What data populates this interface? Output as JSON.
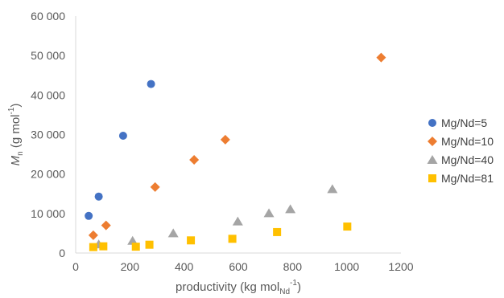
{
  "chart_data": {
    "type": "scatter",
    "xlabel": {
      "main": "productivity (kg mol",
      "sub": "Nd",
      "sup": "-1",
      "end": ")"
    },
    "ylabel": {
      "main": "M",
      "sub": "n",
      "rest": " (g mol",
      "sup": "-1",
      "end": ")"
    },
    "xlim": [
      0,
      1200
    ],
    "ylim": [
      0,
      60000
    ],
    "x_ticks": [
      0,
      200,
      400,
      600,
      800,
      1000,
      1200
    ],
    "y_ticks": [
      0,
      10000,
      20000,
      30000,
      40000,
      50000,
      60000
    ],
    "x_tick_labels": [
      "0",
      "200",
      "400",
      "600",
      "800",
      "1000",
      "1200"
    ],
    "y_tick_labels": [
      "0",
      "10 000",
      "20 000",
      "30 000",
      "40 000",
      "50 000",
      "60 000"
    ],
    "grid": false,
    "legend_position": "right",
    "series": [
      {
        "name": "Mg/Nd=5",
        "marker": "circle",
        "color": "#4472C4",
        "points": [
          [
            48,
            9400
          ],
          [
            85,
            14300
          ],
          [
            175,
            29700
          ],
          [
            278,
            42800
          ]
        ]
      },
      {
        "name": "Mg/Nd=10",
        "marker": "diamond",
        "color": "#ED7D31",
        "points": [
          [
            65,
            4500
          ],
          [
            112,
            7000
          ],
          [
            293,
            16700
          ],
          [
            437,
            23600
          ],
          [
            552,
            28700
          ],
          [
            1127,
            49500
          ]
        ]
      },
      {
        "name": "Mg/Nd=40",
        "marker": "triangle",
        "color": "#A5A5A5",
        "points": [
          [
            85,
            2200
          ],
          [
            210,
            3100
          ],
          [
            360,
            5000
          ],
          [
            598,
            8000
          ],
          [
            713,
            10100
          ],
          [
            792,
            11100
          ],
          [
            947,
            16200
          ]
        ]
      },
      {
        "name": "Mg/Nd=81",
        "marker": "square",
        "color": "#FFC000",
        "points": [
          [
            65,
            1500
          ],
          [
            102,
            1700
          ],
          [
            222,
            1600
          ],
          [
            272,
            2100
          ],
          [
            425,
            3200
          ],
          [
            578,
            3600
          ],
          [
            743,
            5300
          ],
          [
            1002,
            6700
          ]
        ]
      }
    ]
  }
}
